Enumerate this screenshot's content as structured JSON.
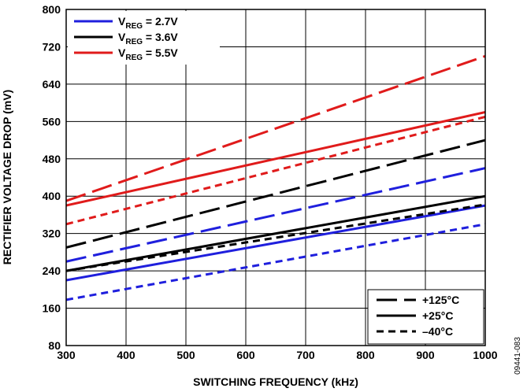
{
  "chart_data": {
    "type": "line",
    "xlabel": "SWITCHING FREQUENCY (kHz)",
    "ylabel": "RECTIFIER VOLTAGE DROP (mV)",
    "xlim": [
      300,
      1000
    ],
    "ylim": [
      80,
      800
    ],
    "x_ticks": [
      300,
      400,
      500,
      600,
      700,
      800,
      900,
      1000
    ],
    "y_ticks": [
      80,
      160,
      240,
      320,
      400,
      480,
      560,
      640,
      720,
      800
    ],
    "grid": true,
    "figure_code": "09441-083",
    "voltage_legend": {
      "placement": "top-left",
      "entries": [
        {
          "prefix": "V",
          "sub": "REG",
          "suffix": " = 2.7V",
          "color": "#1f1fdd"
        },
        {
          "prefix": "V",
          "sub": "REG",
          "suffix": " = 3.6V",
          "color": "#000000"
        },
        {
          "prefix": "V",
          "sub": "REG",
          "suffix": " = 5.5V",
          "color": "#e01b1b"
        }
      ]
    },
    "temperature_legend": {
      "placement": "bottom-right",
      "entries": [
        {
          "label": "+125°C",
          "dash": "long-dash"
        },
        {
          "label": "+25°C",
          "dash": "solid"
        },
        {
          "label": "–40°C",
          "dash": "short-dash"
        }
      ]
    },
    "series": [
      {
        "vreg": "2.7V",
        "temp": "+125°C",
        "color": "#1f1fdd",
        "dash": "long-dash",
        "x": [
          300,
          1000
        ],
        "y": [
          260,
          460
        ]
      },
      {
        "vreg": "2.7V",
        "temp": "+25°C",
        "color": "#1f1fdd",
        "dash": "solid",
        "x": [
          300,
          1000
        ],
        "y": [
          220,
          380
        ]
      },
      {
        "vreg": "2.7V",
        "temp": "–40°C",
        "color": "#1f1fdd",
        "dash": "short-dash",
        "x": [
          300,
          1000
        ],
        "y": [
          178,
          340
        ]
      },
      {
        "vreg": "3.6V",
        "temp": "+125°C",
        "color": "#000000",
        "dash": "long-dash",
        "x": [
          300,
          1000
        ],
        "y": [
          290,
          520
        ]
      },
      {
        "vreg": "3.6V",
        "temp": "+25°C",
        "color": "#000000",
        "dash": "solid",
        "x": [
          300,
          1000
        ],
        "y": [
          240,
          400
        ]
      },
      {
        "vreg": "3.6V",
        "temp": "–40°C",
        "color": "#000000",
        "dash": "short-dash",
        "x": [
          300,
          1000
        ],
        "y": [
          240,
          382
        ]
      },
      {
        "vreg": "5.5V",
        "temp": "+125°C",
        "color": "#e01b1b",
        "dash": "long-dash",
        "x": [
          300,
          1000
        ],
        "y": [
          390,
          700
        ]
      },
      {
        "vreg": "5.5V",
        "temp": "+25°C",
        "color": "#e01b1b",
        "dash": "solid",
        "x": [
          300,
          1000
        ],
        "y": [
          380,
          580
        ]
      },
      {
        "vreg": "5.5V",
        "temp": "–40°C",
        "color": "#e01b1b",
        "dash": "short-dash",
        "x": [
          300,
          1000
        ],
        "y": [
          340,
          570
        ]
      }
    ]
  }
}
